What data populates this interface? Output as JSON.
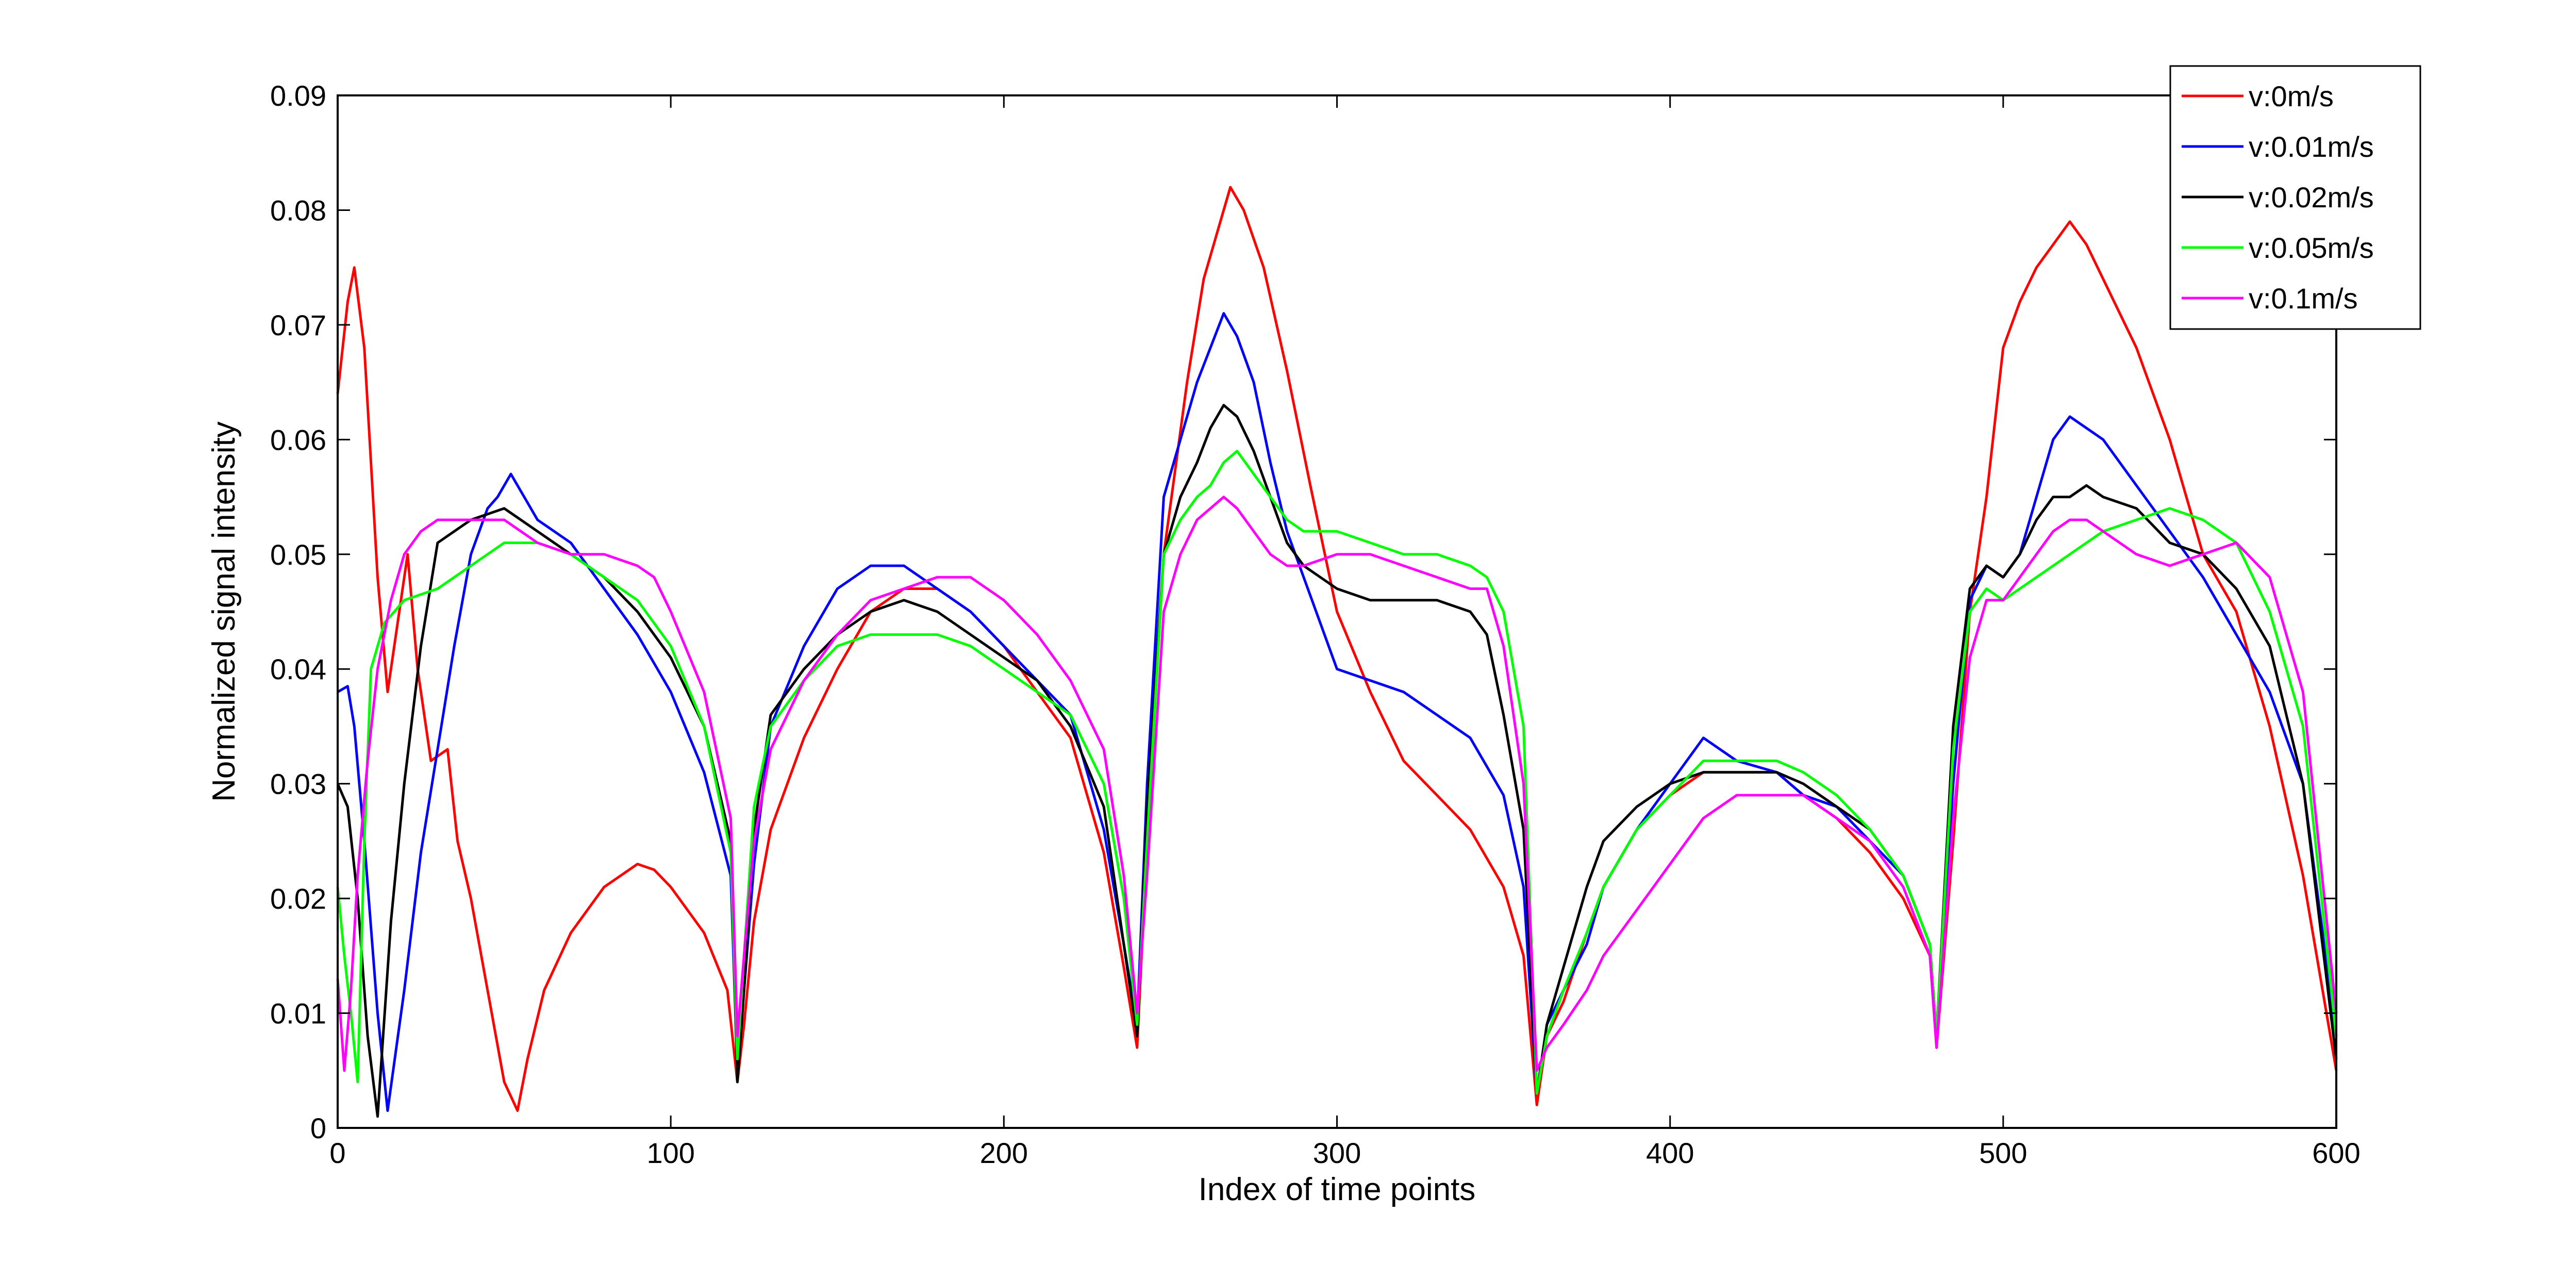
{
  "chart_data": {
    "type": "line",
    "title": "",
    "xlabel": "Index of time points",
    "ylabel": "Normalized signal intensity",
    "xlim": [
      0,
      600
    ],
    "ylim": [
      0,
      0.09
    ],
    "x_ticks": [
      0,
      100,
      200,
      300,
      400,
      500,
      600
    ],
    "y_ticks": [
      0,
      0.01,
      0.02,
      0.03,
      0.04,
      0.05,
      0.06,
      0.07,
      0.08,
      0.09
    ],
    "x_tick_labels": [
      "0",
      "100",
      "200",
      "300",
      "400",
      "500",
      "600"
    ],
    "y_tick_labels": [
      "0",
      "0.01",
      "0.02",
      "0.03",
      "0.04",
      "0.05",
      "0.06",
      "0.07",
      "0.08",
      "0.09"
    ],
    "grid": false,
    "legend_position": "top-right",
    "series": [
      {
        "name": "v:0m/s",
        "color": "#ff0000",
        "x": [
          0,
          3,
          5,
          8,
          12,
          15,
          18,
          21,
          24,
          28,
          33,
          36,
          40,
          45,
          50,
          54,
          57,
          62,
          70,
          80,
          90,
          95,
          100,
          110,
          117,
          120,
          122,
          125,
          130,
          140,
          150,
          160,
          170,
          180,
          190,
          200,
          210,
          220,
          230,
          236,
          240,
          243,
          248,
          255,
          260,
          265,
          268,
          272,
          278,
          285,
          292,
          300,
          310,
          320,
          330,
          340,
          350,
          356,
          360,
          363,
          368,
          375,
          380,
          390,
          400,
          410,
          420,
          432,
          440,
          450,
          460,
          470,
          478,
          480,
          485,
          490,
          495,
          500,
          505,
          510,
          515,
          520,
          525,
          530,
          540,
          550,
          560,
          570,
          580,
          590,
          600
        ],
        "y": [
          0.064,
          0.072,
          0.075,
          0.068,
          0.048,
          0.038,
          0.044,
          0.05,
          0.04,
          0.032,
          0.033,
          0.025,
          0.02,
          0.012,
          0.004,
          0.0015,
          0.006,
          0.012,
          0.017,
          0.021,
          0.023,
          0.0225,
          0.021,
          0.017,
          0.012,
          0.004,
          0.009,
          0.018,
          0.026,
          0.034,
          0.04,
          0.045,
          0.047,
          0.047,
          0.045,
          0.042,
          0.038,
          0.034,
          0.024,
          0.014,
          0.007,
          0.025,
          0.05,
          0.065,
          0.074,
          0.079,
          0.082,
          0.08,
          0.075,
          0.066,
          0.056,
          0.045,
          0.038,
          0.032,
          0.029,
          0.026,
          0.021,
          0.015,
          0.002,
          0.008,
          0.011,
          0.017,
          0.021,
          0.026,
          0.029,
          0.031,
          0.031,
          0.031,
          0.029,
          0.027,
          0.024,
          0.02,
          0.015,
          0.007,
          0.025,
          0.045,
          0.055,
          0.068,
          0.072,
          0.075,
          0.077,
          0.079,
          0.077,
          0.074,
          0.068,
          0.06,
          0.05,
          0.045,
          0.035,
          0.022,
          0.005
        ]
      },
      {
        "name": "v:0.01m/s",
        "color": "#0000ff",
        "x": [
          0,
          3,
          5,
          8,
          12,
          15,
          20,
          25,
          30,
          35,
          40,
          45,
          48,
          52,
          60,
          70,
          80,
          90,
          100,
          110,
          118,
          120,
          122,
          125,
          130,
          140,
          150,
          160,
          170,
          180,
          190,
          200,
          210,
          220,
          230,
          236,
          240,
          243,
          248,
          253,
          258,
          262,
          266,
          270,
          275,
          280,
          285,
          290,
          295,
          300,
          310,
          320,
          330,
          340,
          350,
          356,
          360,
          363,
          368,
          375,
          380,
          390,
          400,
          405,
          410,
          420,
          432,
          440,
          450,
          460,
          470,
          478,
          480,
          485,
          490,
          495,
          500,
          505,
          510,
          515,
          520,
          525,
          530,
          540,
          550,
          560,
          570,
          580,
          590,
          600
        ],
        "y": [
          0.038,
          0.0385,
          0.035,
          0.025,
          0.01,
          0.0015,
          0.012,
          0.024,
          0.033,
          0.042,
          0.05,
          0.054,
          0.055,
          0.057,
          0.053,
          0.051,
          0.047,
          0.043,
          0.038,
          0.031,
          0.022,
          0.005,
          0.012,
          0.023,
          0.035,
          0.042,
          0.047,
          0.049,
          0.049,
          0.047,
          0.045,
          0.042,
          0.039,
          0.036,
          0.026,
          0.016,
          0.009,
          0.03,
          0.055,
          0.06,
          0.065,
          0.068,
          0.071,
          0.069,
          0.065,
          0.058,
          0.052,
          0.048,
          0.044,
          0.04,
          0.039,
          0.038,
          0.036,
          0.034,
          0.029,
          0.021,
          0.003,
          0.009,
          0.012,
          0.016,
          0.021,
          0.026,
          0.03,
          0.032,
          0.034,
          0.032,
          0.031,
          0.029,
          0.028,
          0.025,
          0.022,
          0.016,
          0.008,
          0.03,
          0.046,
          0.049,
          0.048,
          0.05,
          0.055,
          0.06,
          0.062,
          0.061,
          0.06,
          0.056,
          0.052,
          0.048,
          0.043,
          0.038,
          0.03,
          0.008
        ]
      },
      {
        "name": "v:0.02m/s",
        "color": "#000000",
        "x": [
          0,
          3,
          6,
          9,
          12,
          16,
          20,
          25,
          30,
          40,
          50,
          60,
          70,
          80,
          90,
          100,
          110,
          118,
          120,
          122,
          125,
          130,
          140,
          150,
          160,
          170,
          180,
          190,
          200,
          210,
          220,
          230,
          236,
          240,
          243,
          248,
          253,
          258,
          262,
          266,
          270,
          275,
          280,
          285,
          290,
          300,
          310,
          320,
          330,
          340,
          345,
          350,
          356,
          360,
          363,
          368,
          375,
          380,
          390,
          400,
          410,
          420,
          432,
          440,
          450,
          460,
          470,
          478,
          480,
          485,
          490,
          495,
          500,
          505,
          510,
          515,
          520,
          525,
          530,
          540,
          550,
          560,
          570,
          580,
          590,
          600
        ],
        "y": [
          0.03,
          0.028,
          0.02,
          0.008,
          0.001,
          0.018,
          0.03,
          0.042,
          0.051,
          0.053,
          0.054,
          0.052,
          0.05,
          0.048,
          0.045,
          0.041,
          0.035,
          0.025,
          0.004,
          0.012,
          0.026,
          0.036,
          0.04,
          0.043,
          0.045,
          0.046,
          0.045,
          0.043,
          0.041,
          0.039,
          0.035,
          0.028,
          0.016,
          0.008,
          0.028,
          0.05,
          0.055,
          0.058,
          0.061,
          0.063,
          0.062,
          0.059,
          0.055,
          0.051,
          0.049,
          0.047,
          0.046,
          0.046,
          0.046,
          0.045,
          0.043,
          0.036,
          0.026,
          0.003,
          0.009,
          0.014,
          0.021,
          0.025,
          0.028,
          0.03,
          0.031,
          0.031,
          0.031,
          0.03,
          0.028,
          0.026,
          0.022,
          0.016,
          0.008,
          0.035,
          0.047,
          0.049,
          0.048,
          0.05,
          0.053,
          0.055,
          0.055,
          0.056,
          0.055,
          0.054,
          0.051,
          0.05,
          0.047,
          0.042,
          0.03,
          0.006
        ]
      },
      {
        "name": "v:0.05m/s",
        "color": "#00ff00",
        "x": [
          0,
          2,
          4,
          6,
          8,
          10,
          14,
          20,
          30,
          40,
          50,
          60,
          70,
          80,
          90,
          100,
          110,
          118,
          120,
          122,
          125,
          130,
          140,
          150,
          160,
          170,
          180,
          190,
          200,
          210,
          220,
          230,
          236,
          240,
          243,
          248,
          253,
          258,
          262,
          266,
          270,
          275,
          280,
          285,
          290,
          300,
          310,
          320,
          330,
          340,
          345,
          350,
          356,
          360,
          363,
          368,
          375,
          380,
          390,
          400,
          410,
          420,
          432,
          440,
          450,
          460,
          470,
          478,
          480,
          485,
          490,
          495,
          500,
          505,
          510,
          515,
          520,
          525,
          530,
          540,
          550,
          560,
          570,
          580,
          590,
          600
        ],
        "y": [
          0.021,
          0.015,
          0.01,
          0.004,
          0.025,
          0.04,
          0.044,
          0.046,
          0.047,
          0.049,
          0.051,
          0.051,
          0.05,
          0.048,
          0.046,
          0.042,
          0.035,
          0.024,
          0.006,
          0.015,
          0.028,
          0.035,
          0.039,
          0.042,
          0.043,
          0.043,
          0.043,
          0.042,
          0.04,
          0.038,
          0.036,
          0.03,
          0.02,
          0.009,
          0.025,
          0.05,
          0.053,
          0.055,
          0.056,
          0.058,
          0.059,
          0.057,
          0.055,
          0.053,
          0.052,
          0.052,
          0.051,
          0.05,
          0.05,
          0.049,
          0.048,
          0.045,
          0.035,
          0.003,
          0.008,
          0.012,
          0.017,
          0.021,
          0.026,
          0.029,
          0.032,
          0.032,
          0.032,
          0.031,
          0.029,
          0.026,
          0.022,
          0.016,
          0.008,
          0.033,
          0.045,
          0.047,
          0.046,
          0.047,
          0.048,
          0.049,
          0.05,
          0.051,
          0.052,
          0.053,
          0.054,
          0.053,
          0.051,
          0.045,
          0.035,
          0.008
        ]
      },
      {
        "name": "v:0.1m/s",
        "color": "#ff00ff",
        "x": [
          0,
          2,
          4,
          6,
          9,
          12,
          16,
          20,
          25,
          30,
          40,
          50,
          60,
          70,
          80,
          90,
          95,
          100,
          110,
          118,
          120,
          122,
          125,
          130,
          140,
          150,
          160,
          170,
          180,
          190,
          200,
          210,
          220,
          230,
          236,
          240,
          243,
          248,
          253,
          258,
          262,
          266,
          270,
          275,
          280,
          285,
          290,
          300,
          310,
          320,
          330,
          340,
          345,
          350,
          356,
          360,
          363,
          368,
          375,
          380,
          390,
          400,
          410,
          420,
          432,
          440,
          450,
          460,
          470,
          478,
          480,
          485,
          490,
          495,
          500,
          505,
          510,
          515,
          520,
          525,
          530,
          540,
          550,
          560,
          570,
          580,
          590,
          600
        ],
        "y": [
          0.013,
          0.005,
          0.012,
          0.022,
          0.032,
          0.04,
          0.046,
          0.05,
          0.052,
          0.053,
          0.053,
          0.053,
          0.051,
          0.05,
          0.05,
          0.049,
          0.048,
          0.045,
          0.038,
          0.027,
          0.008,
          0.015,
          0.025,
          0.033,
          0.039,
          0.043,
          0.046,
          0.047,
          0.048,
          0.048,
          0.046,
          0.043,
          0.039,
          0.033,
          0.022,
          0.01,
          0.022,
          0.045,
          0.05,
          0.053,
          0.054,
          0.055,
          0.054,
          0.052,
          0.05,
          0.049,
          0.049,
          0.05,
          0.05,
          0.049,
          0.048,
          0.047,
          0.047,
          0.042,
          0.03,
          0.005,
          0.007,
          0.009,
          0.012,
          0.015,
          0.019,
          0.023,
          0.027,
          0.029,
          0.029,
          0.029,
          0.027,
          0.025,
          0.021,
          0.015,
          0.007,
          0.027,
          0.041,
          0.046,
          0.046,
          0.048,
          0.05,
          0.052,
          0.053,
          0.053,
          0.052,
          0.05,
          0.049,
          0.05,
          0.051,
          0.048,
          0.038,
          0.01
        ]
      }
    ]
  }
}
